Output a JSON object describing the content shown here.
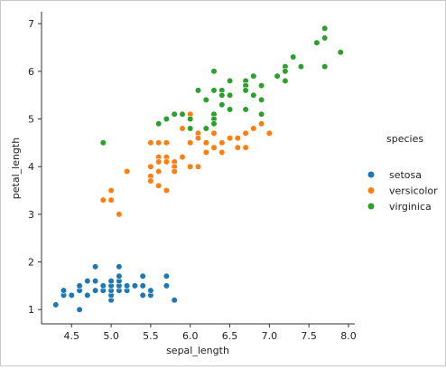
{
  "chart_data": {
    "type": "scatter",
    "title": "",
    "xlabel": "sepal_length",
    "ylabel": "petal_length",
    "xlim": [
      4.12,
      8.08
    ],
    "ylim": [
      0.7,
      7.25
    ],
    "xticks": [
      "4.5",
      "5.0",
      "5.5",
      "6.0",
      "6.5",
      "7.0",
      "7.5",
      "8.0"
    ],
    "yticks": [
      "1",
      "2",
      "3",
      "4",
      "5",
      "6",
      "7"
    ],
    "grid": false,
    "legend_title": "species",
    "legend_position": "right",
    "series": [
      {
        "name": "setosa",
        "color": "#1f77b4",
        "points": [
          [
            4.3,
            1.1
          ],
          [
            4.4,
            1.3
          ],
          [
            4.4,
            1.4
          ],
          [
            4.5,
            1.3
          ],
          [
            4.6,
            1.0
          ],
          [
            4.6,
            1.4
          ],
          [
            4.6,
            1.5
          ],
          [
            4.7,
            1.3
          ],
          [
            4.7,
            1.6
          ],
          [
            4.8,
            1.4
          ],
          [
            4.8,
            1.6
          ],
          [
            4.8,
            1.9
          ],
          [
            4.9,
            1.4
          ],
          [
            4.9,
            1.5
          ],
          [
            5.0,
            1.2
          ],
          [
            5.0,
            1.3
          ],
          [
            5.0,
            1.4
          ],
          [
            5.0,
            1.5
          ],
          [
            5.0,
            1.6
          ],
          [
            5.1,
            1.4
          ],
          [
            5.1,
            1.5
          ],
          [
            5.1,
            1.6
          ],
          [
            5.1,
            1.7
          ],
          [
            5.1,
            1.9
          ],
          [
            5.2,
            1.4
          ],
          [
            5.2,
            1.5
          ],
          [
            5.3,
            1.5
          ],
          [
            5.4,
            1.3
          ],
          [
            5.4,
            1.5
          ],
          [
            5.4,
            1.7
          ],
          [
            5.5,
            1.3
          ],
          [
            5.5,
            1.4
          ],
          [
            5.7,
            1.5
          ],
          [
            5.7,
            1.7
          ],
          [
            5.8,
            1.2
          ]
        ]
      },
      {
        "name": "versicolor",
        "color": "#ff7f0e",
        "points": [
          [
            4.9,
            3.3
          ],
          [
            5.0,
            3.3
          ],
          [
            5.0,
            3.5
          ],
          [
            5.1,
            3.0
          ],
          [
            5.2,
            3.9
          ],
          [
            5.5,
            4.5
          ],
          [
            5.5,
            4.0
          ],
          [
            5.5,
            3.8
          ],
          [
            5.5,
            3.7
          ],
          [
            5.6,
            4.5
          ],
          [
            5.6,
            4.2
          ],
          [
            5.6,
            4.1
          ],
          [
            5.6,
            3.9
          ],
          [
            5.6,
            3.6
          ],
          [
            5.7,
            4.5
          ],
          [
            5.7,
            4.2
          ],
          [
            5.7,
            4.1
          ],
          [
            5.7,
            3.5
          ],
          [
            5.8,
            4.1
          ],
          [
            5.8,
            4.0
          ],
          [
            5.8,
            3.9
          ],
          [
            5.9,
            4.8
          ],
          [
            5.9,
            4.2
          ],
          [
            6.0,
            5.1
          ],
          [
            6.0,
            4.5
          ],
          [
            6.0,
            4.0
          ],
          [
            6.1,
            4.7
          ],
          [
            6.1,
            4.6
          ],
          [
            6.1,
            4.0
          ],
          [
            6.2,
            4.5
          ],
          [
            6.2,
            4.3
          ],
          [
            6.3,
            4.9
          ],
          [
            6.3,
            4.7
          ],
          [
            6.3,
            4.4
          ],
          [
            6.4,
            4.5
          ],
          [
            6.4,
            4.3
          ],
          [
            6.5,
            4.6
          ],
          [
            6.6,
            4.6
          ],
          [
            6.6,
            4.4
          ],
          [
            6.7,
            4.7
          ],
          [
            6.7,
            4.4
          ],
          [
            6.8,
            4.8
          ],
          [
            6.9,
            4.9
          ],
          [
            7.0,
            4.7
          ]
        ]
      },
      {
        "name": "virginica",
        "color": "#2ca02c",
        "points": [
          [
            4.9,
            4.5
          ],
          [
            5.6,
            4.9
          ],
          [
            5.7,
            5.0
          ],
          [
            5.8,
            5.1
          ],
          [
            5.9,
            5.1
          ],
          [
            6.0,
            5.0
          ],
          [
            6.0,
            4.8
          ],
          [
            6.1,
            5.6
          ],
          [
            6.2,
            5.4
          ],
          [
            6.2,
            4.8
          ],
          [
            6.3,
            6.0
          ],
          [
            6.3,
            5.6
          ],
          [
            6.3,
            5.1
          ],
          [
            6.3,
            5.0
          ],
          [
            6.3,
            4.9
          ],
          [
            6.4,
            5.6
          ],
          [
            6.4,
            5.5
          ],
          [
            6.4,
            5.3
          ],
          [
            6.5,
            5.8
          ],
          [
            6.5,
            5.5
          ],
          [
            6.5,
            5.2
          ],
          [
            6.7,
            5.8
          ],
          [
            6.7,
            5.7
          ],
          [
            6.7,
            5.6
          ],
          [
            6.7,
            5.2
          ],
          [
            6.8,
            5.9
          ],
          [
            6.8,
            5.5
          ],
          [
            6.9,
            5.7
          ],
          [
            6.9,
            5.4
          ],
          [
            6.9,
            5.1
          ],
          [
            7.1,
            5.9
          ],
          [
            7.2,
            6.1
          ],
          [
            7.2,
            6.0
          ],
          [
            7.2,
            5.8
          ],
          [
            7.3,
            6.3
          ],
          [
            7.4,
            6.1
          ],
          [
            7.6,
            6.6
          ],
          [
            7.7,
            6.9
          ],
          [
            7.7,
            6.7
          ],
          [
            7.7,
            6.1
          ],
          [
            7.9,
            6.4
          ]
        ]
      }
    ]
  }
}
